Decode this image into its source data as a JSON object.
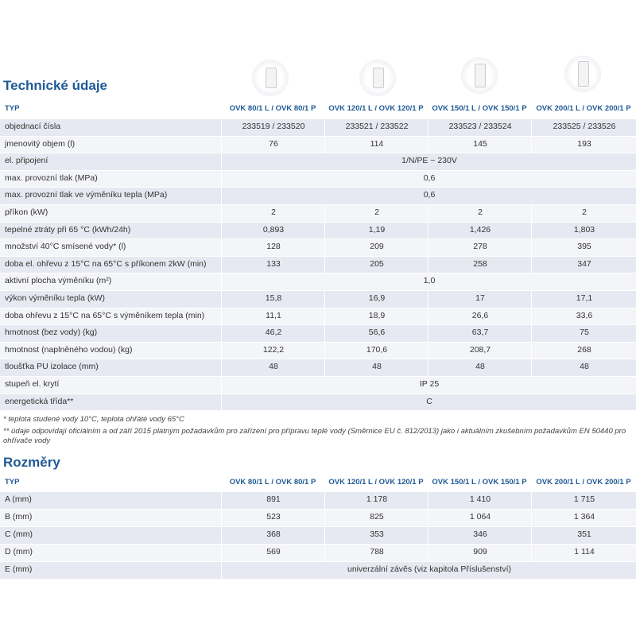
{
  "sections": [
    {
      "title": "Technické údaje",
      "header": [
        "TYP",
        "OVK 80/1 L / OVK 80/1 P",
        "OVK 120/1 L / OVK 120/1 P",
        "OVK 150/1 L / OVK 150/1 P",
        "OVK 200/1 L / OVK 200/1 P"
      ],
      "rows": [
        [
          "objednací čísla",
          "233519 / 233520",
          "233521 / 233522",
          "233523 / 233524",
          "233525 / 233526"
        ],
        [
          "jmenovitý objem (l)",
          "76",
          "114",
          "145",
          "193"
        ],
        [
          "el. připojení",
          "1/N/PE ~ 230V"
        ],
        [
          "max. provozní tlak (MPa)",
          "0,6"
        ],
        [
          "max. provozní tlak ve výměníku tepla (MPa)",
          "0,6"
        ],
        [
          "příkon (kW)",
          "2",
          "2",
          "2",
          "2"
        ],
        [
          "tepelné ztráty při 65 °C (kWh/24h)",
          "0,893",
          "1,19",
          "1,426",
          "1,803"
        ],
        [
          "množství 40°C smísené vody* (l)",
          "128",
          "209",
          "278",
          "395"
        ],
        [
          "doba el. ohřevu z 15°C na 65°C s příkonem 2kW (min)",
          "133",
          "205",
          "258",
          "347"
        ],
        [
          "aktivní plocha výměníku (m²)",
          "1,0"
        ],
        [
          "výkon výměníku tepla (kW)",
          "15,8",
          "16,9",
          "17",
          "17,1"
        ],
        [
          "doba ohřevu z 15°C na 65°C s výměníkem tepla (min)",
          "11,1",
          "18,9",
          "26,6",
          "33,6"
        ],
        [
          "hmotnost (bez vody) (kg)",
          "46,2",
          "56,6",
          "63,7",
          "75"
        ],
        [
          "hmotnost (naplněného vodou) (kg)",
          "122,2",
          "170,6",
          "208,7",
          "268"
        ],
        [
          "tloušťka PU izolace (mm)",
          "48",
          "48",
          "48",
          "48"
        ],
        [
          "stupeň el. krytí",
          "IP 25"
        ],
        [
          "energetická třída**",
          "C"
        ]
      ],
      "notes": [
        "* teplota studené vody 10°C, teplota ohřáté vody 65°C",
        "** údaje odpovídají oficiálním a od září 2015 platným požadavkům pro zařízení pro přípravu teplé vody (Směrnice EU č. 812/2013) jako i aktuálním zkušebním požadavkům EN 50440 pro ohřívače vody"
      ]
    },
    {
      "title": "Rozměry",
      "header": [
        "TYP",
        "OVK 80/1 L / OVK 80/1 P",
        "OVK 120/1 L / OVK 120/1 P",
        "OVK 150/1 L / OVK 150/1 P",
        "OVK 200/1 L / OVK 200/1 P"
      ],
      "rows": [
        [
          "A (mm)",
          "891",
          "1 178",
          "1 410",
          "1 715"
        ],
        [
          "B (mm)",
          "523",
          "825",
          "1 064",
          "1 364"
        ],
        [
          "C (mm)",
          "368",
          "353",
          "346",
          "351"
        ],
        [
          "D (mm)",
          "569",
          "788",
          "909",
          "1 114"
        ],
        [
          "E (mm)",
          "univerzální závěs (viz kapitola Příslušenství)"
        ]
      ]
    }
  ]
}
